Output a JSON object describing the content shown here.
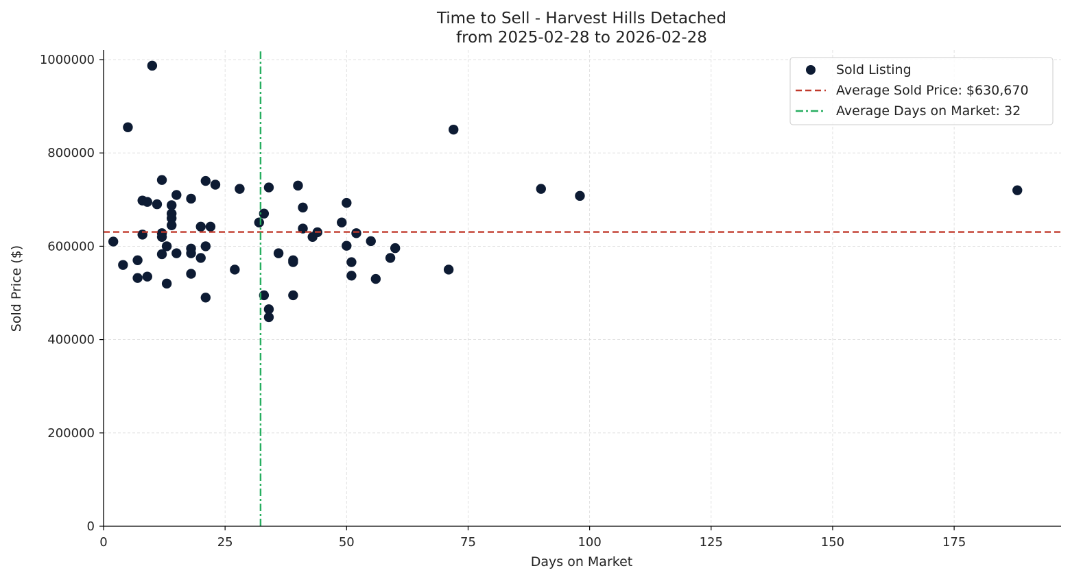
{
  "chart_data": {
    "type": "scatter",
    "title_lines": [
      "Time to Sell - Harvest Hills Detached",
      "from 2025-02-28 to 2026-02-28"
    ],
    "xlabel": "Days on Market",
    "ylabel": "Sold Price ($)",
    "xlim": [
      0,
      197
    ],
    "ylim": [
      0,
      1000000
    ],
    "x_ticks": [
      0,
      25,
      50,
      75,
      100,
      125,
      150,
      175
    ],
    "y_ticks": [
      0,
      200000,
      400000,
      600000,
      800000,
      1000000
    ],
    "grid": true,
    "legend_position": "top-right",
    "colors": {
      "points": "#0d1b33",
      "avg_price_line": "#c0392b",
      "avg_days_line": "#27ae60",
      "grid": "#d9d9d9",
      "axis": "#000000"
    },
    "series": [
      {
        "name": "Sold Listing",
        "points": [
          [
            2,
            610000
          ],
          [
            4,
            560000
          ],
          [
            5,
            855000
          ],
          [
            7,
            570000
          ],
          [
            7,
            532000
          ],
          [
            8,
            698000
          ],
          [
            8,
            625000
          ],
          [
            9,
            695000
          ],
          [
            9,
            535000
          ],
          [
            10,
            987000
          ],
          [
            11,
            690000
          ],
          [
            12,
            742000
          ],
          [
            12,
            628000
          ],
          [
            12,
            620000
          ],
          [
            12,
            583000
          ],
          [
            13,
            600000
          ],
          [
            13,
            520000
          ],
          [
            14,
            688000
          ],
          [
            14,
            670000
          ],
          [
            14,
            660000
          ],
          [
            14,
            645000
          ],
          [
            15,
            710000
          ],
          [
            15,
            585000
          ],
          [
            18,
            702000
          ],
          [
            18,
            595000
          ],
          [
            18,
            585000
          ],
          [
            18,
            541000
          ],
          [
            20,
            642000
          ],
          [
            20,
            575000
          ],
          [
            21,
            740000
          ],
          [
            21,
            600000
          ],
          [
            21,
            490000
          ],
          [
            22,
            642000
          ],
          [
            23,
            732000
          ],
          [
            27,
            550000
          ],
          [
            28,
            723000
          ],
          [
            32,
            651000
          ],
          [
            33,
            670000
          ],
          [
            33,
            495000
          ],
          [
            34,
            726000
          ],
          [
            34,
            465000
          ],
          [
            34,
            448000
          ],
          [
            36,
            585000
          ],
          [
            39,
            570000
          ],
          [
            39,
            566000
          ],
          [
            39,
            495000
          ],
          [
            40,
            730000
          ],
          [
            41,
            683000
          ],
          [
            41,
            638000
          ],
          [
            43,
            620000
          ],
          [
            44,
            630000
          ],
          [
            49,
            651000
          ],
          [
            50,
            693000
          ],
          [
            50,
            601000
          ],
          [
            51,
            566000
          ],
          [
            51,
            537000
          ],
          [
            52,
            628000
          ],
          [
            55,
            611000
          ],
          [
            56,
            530000
          ],
          [
            59,
            575000
          ],
          [
            60,
            596000
          ],
          [
            71,
            550000
          ],
          [
            72,
            850000
          ],
          [
            90,
            723000
          ],
          [
            98,
            708000
          ],
          [
            188,
            720000
          ]
        ]
      }
    ],
    "avg_price": 630670,
    "avg_days": 32.3,
    "legend": [
      "Sold Listing",
      "Average Sold Price: $630,670",
      "Average Days on Market: 32"
    ]
  }
}
